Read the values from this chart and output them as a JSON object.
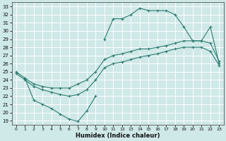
{
  "xlabel": "Humidex (Indice chaleur)",
  "bg_color": "#cfe8e8",
  "grid_color": "#ffffff",
  "line_color": "#2d7d70",
  "xlim": [
    -0.5,
    23.5
  ],
  "ylim": [
    18.5,
    33.5
  ],
  "xticks": [
    0,
    1,
    2,
    3,
    4,
    5,
    6,
    7,
    8,
    9,
    10,
    11,
    12,
    13,
    14,
    15,
    16,
    17,
    18,
    19,
    20,
    21,
    22,
    23
  ],
  "yticks": [
    19,
    20,
    21,
    22,
    23,
    24,
    25,
    26,
    27,
    28,
    29,
    30,
    31,
    32,
    33
  ],
  "line_upper_x": [
    10,
    11,
    12,
    13,
    14,
    15,
    16,
    17,
    18,
    19,
    20,
    21,
    22,
    23
  ],
  "line_upper_y": [
    29.0,
    31.5,
    31.5,
    32.0,
    32.8,
    32.5,
    32.5,
    32.5,
    32.0,
    30.5,
    28.8,
    28.8,
    30.5,
    26.0
  ],
  "line_mid_upper_x": [
    0,
    1,
    2,
    3,
    4,
    5,
    6,
    7,
    8,
    9,
    10,
    11,
    12,
    13,
    14,
    15,
    16,
    17,
    18,
    19,
    20,
    21,
    22,
    23
  ],
  "line_mid_upper_y": [
    25.0,
    24.2,
    23.5,
    23.2,
    23.0,
    23.0,
    23.0,
    23.5,
    24.0,
    25.0,
    26.5,
    27.0,
    27.2,
    27.5,
    27.8,
    27.8,
    28.0,
    28.2,
    28.5,
    28.8,
    28.8,
    28.8,
    28.5,
    26.3
  ],
  "line_mid_lower_x": [
    0,
    1,
    2,
    3,
    4,
    5,
    6,
    7,
    8,
    9,
    10,
    11,
    12,
    13,
    14,
    15,
    16,
    17,
    18,
    19,
    20,
    21,
    22,
    23
  ],
  "line_mid_lower_y": [
    24.8,
    24.0,
    23.2,
    22.8,
    22.5,
    22.2,
    22.0,
    22.2,
    22.8,
    24.0,
    25.5,
    26.0,
    26.2,
    26.5,
    26.8,
    27.0,
    27.2,
    27.5,
    27.8,
    28.0,
    28.0,
    28.0,
    27.5,
    25.8
  ],
  "line_lower_x": [
    1,
    2,
    3,
    4,
    5,
    6,
    7,
    8,
    9
  ],
  "line_lower_y": [
    24.2,
    21.5,
    21.0,
    20.5,
    19.8,
    19.2,
    18.9,
    20.2,
    22.0
  ]
}
